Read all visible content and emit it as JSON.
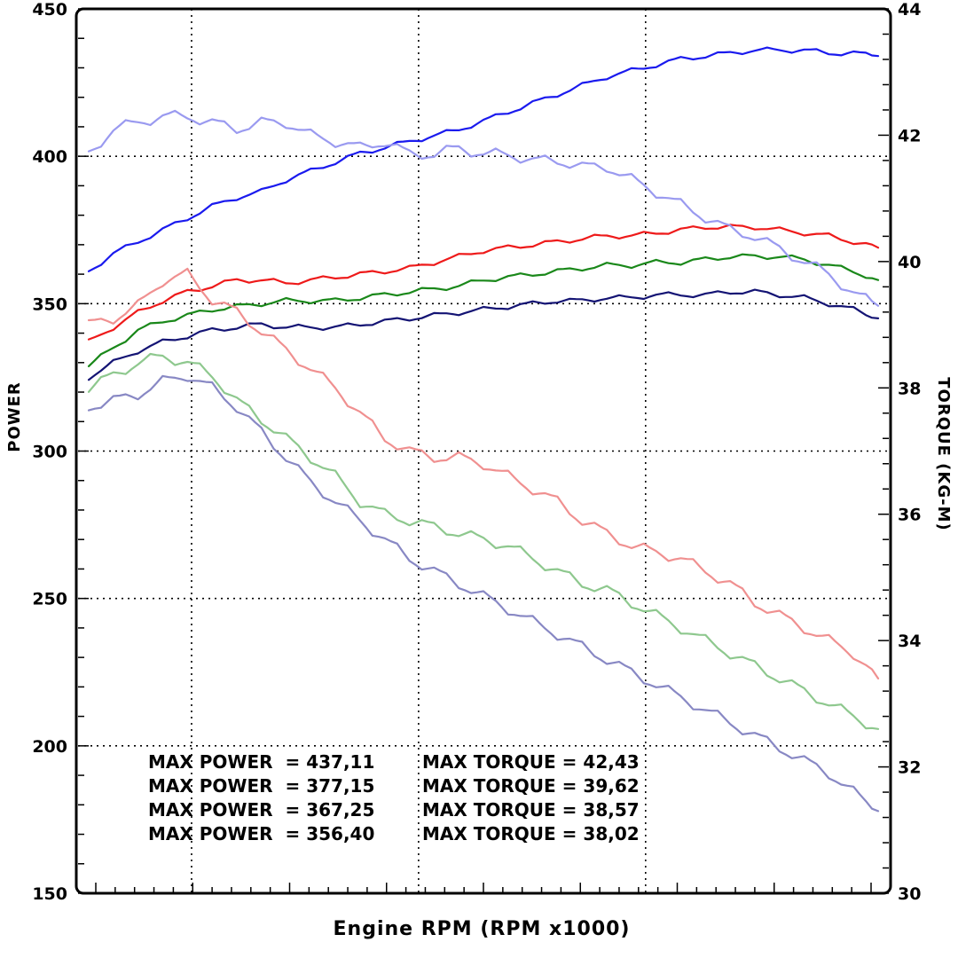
{
  "chart_data": {
    "type": "line",
    "xlabel": "Engine RPM (RPM x1000)",
    "ylabel_left": "POWER",
    "ylabel_right": "TORQUE (KG-M)",
    "ylim_left": [
      150,
      450
    ],
    "ylim_right": [
      30,
      44
    ],
    "yticks_left": [
      "150",
      "200",
      "250",
      "300",
      "350",
      "400",
      "450"
    ],
    "yticks_right": [
      "30",
      "32",
      "34",
      "36",
      "38",
      "40",
      "42",
      "44"
    ],
    "x": [
      0,
      1,
      2,
      3,
      4,
      5,
      6,
      7,
      8,
      9,
      10,
      11,
      12,
      13,
      14,
      15,
      16,
      17,
      18,
      19,
      20,
      21,
      22,
      23,
      24,
      25,
      26,
      27,
      28,
      29,
      30,
      31,
      32
    ],
    "xlim": [
      0,
      32
    ],
    "grid": true,
    "series": [
      {
        "axis": "left",
        "color": "#1a1aee",
        "values": [
          361,
          367,
          371,
          375,
          379,
          383,
          386,
          388,
          392,
          395,
          398,
          401,
          403,
          405,
          407,
          409,
          412,
          415,
          418,
          421,
          424,
          427,
          429,
          431,
          433,
          434,
          435,
          436,
          436,
          436,
          435,
          435,
          434
        ]
      },
      {
        "axis": "left",
        "color": "#ee1a1a",
        "values": [
          337,
          342,
          347,
          351,
          354,
          356,
          358,
          358,
          357,
          358,
          359,
          360,
          361,
          362,
          364,
          366,
          368,
          369,
          370,
          371,
          372,
          373,
          373,
          374,
          375,
          376,
          376,
          376,
          375,
          374,
          373,
          371,
          369
        ]
      },
      {
        "axis": "left",
        "color": "#1a881a",
        "values": [
          329,
          335,
          341,
          344,
          346,
          348,
          349,
          350,
          351,
          351,
          351,
          352,
          353,
          354,
          355,
          356,
          358,
          359,
          360,
          361,
          362,
          363,
          363,
          364,
          364,
          365,
          366,
          366,
          366,
          365,
          363,
          361,
          358
        ]
      },
      {
        "axis": "left",
        "color": "#141474",
        "values": [
          325,
          330,
          334,
          337,
          339,
          341,
          342,
          343,
          342,
          342,
          342,
          343,
          344,
          345,
          346,
          347,
          348,
          349,
          350,
          351,
          351,
          352,
          352,
          353,
          353,
          353,
          354,
          354,
          353,
          352,
          350,
          348,
          345
        ]
      },
      {
        "axis": "right",
        "color": "#9a9af0",
        "values": [
          41.7,
          42.1,
          42.2,
          42.3,
          42.3,
          42.2,
          42.1,
          42.2,
          42.2,
          42.0,
          41.9,
          41.8,
          41.9,
          41.7,
          41.7,
          41.8,
          41.7,
          41.7,
          41.6,
          41.6,
          41.5,
          41.5,
          41.3,
          41.1,
          40.9,
          40.7,
          40.5,
          40.4,
          40.2,
          40.0,
          39.8,
          39.5,
          39.3
        ]
      },
      {
        "axis": "right",
        "color": "#f09090",
        "values": [
          39.0,
          39.1,
          39.3,
          39.7,
          39.8,
          39.4,
          39.2,
          38.9,
          38.6,
          38.3,
          38.0,
          37.6,
          37.2,
          37.0,
          36.9,
          36.9,
          36.8,
          36.6,
          36.4,
          36.2,
          35.9,
          35.7,
          35.5,
          35.4,
          35.3,
          35.1,
          34.9,
          34.6,
          34.4,
          34.2,
          34.0,
          33.8,
          33.4
        ]
      },
      {
        "axis": "right",
        "color": "#8ec88e",
        "values": [
          38.0,
          38.2,
          38.4,
          38.5,
          38.4,
          38.2,
          37.8,
          37.5,
          37.2,
          36.9,
          36.6,
          36.2,
          36.0,
          35.9,
          35.8,
          35.7,
          35.6,
          35.5,
          35.3,
          35.1,
          34.9,
          34.8,
          34.6,
          34.4,
          34.2,
          34.0,
          33.8,
          33.6,
          33.4,
          33.2,
          33.0,
          32.8,
          32.6
        ]
      },
      {
        "axis": "right",
        "color": "#8888c4",
        "values": [
          37.7,
          37.8,
          37.9,
          38.1,
          38.2,
          38.0,
          37.7,
          37.3,
          36.9,
          36.5,
          36.2,
          35.9,
          35.6,
          35.3,
          35.1,
          34.9,
          34.7,
          34.5,
          34.3,
          34.1,
          33.9,
          33.7,
          33.5,
          33.3,
          33.1,
          32.9,
          32.7,
          32.5,
          32.3,
          32.1,
          31.9,
          31.6,
          31.3
        ]
      }
    ],
    "annotations": [
      "MAX POWER  = 437,11",
      "MAX POWER  = 377,15",
      "MAX POWER  = 367,25",
      "MAX POWER  = 356,40",
      "MAX TORQUE = 42,43",
      "MAX TORQUE = 39,62",
      "MAX TORQUE = 38,57",
      "MAX TORQUE = 38,02"
    ]
  }
}
